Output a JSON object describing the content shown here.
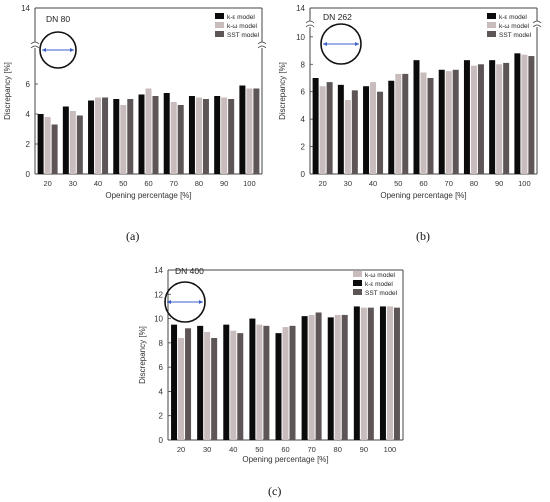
{
  "chart_data": [
    {
      "type": "bar",
      "panel_label": "(a)",
      "pipe_label": "DN 80",
      "xlabel": "Opening percentage [%]",
      "ylabel": "Discrepancy [%]",
      "categories": [
        "20",
        "30",
        "40",
        "50",
        "60",
        "70",
        "80",
        "90",
        "100"
      ],
      "yticks": [
        "0",
        "2",
        "4",
        "6",
        "14"
      ],
      "axis_break": true,
      "series": [
        {
          "name": "k-ε model",
          "color": "#0b0b0b",
          "values": [
            4.0,
            4.5,
            4.9,
            5.0,
            5.3,
            5.4,
            5.2,
            5.2,
            5.9
          ]
        },
        {
          "name": "k-ω model",
          "color": "#c8bcbc",
          "values": [
            3.8,
            4.2,
            5.1,
            4.6,
            5.7,
            4.8,
            5.1,
            5.1,
            5.7
          ]
        },
        {
          "name": "SST model",
          "color": "#5e5656",
          "values": [
            3.3,
            3.9,
            5.1,
            5.0,
            5.2,
            4.6,
            5.0,
            5.0,
            5.7
          ]
        }
      ],
      "legend": "top-right"
    },
    {
      "type": "bar",
      "panel_label": "(b)",
      "pipe_label": "DN 262",
      "xlabel": "Opening percentage [%]",
      "ylabel": "Discrepancy [%]",
      "categories": [
        "20",
        "30",
        "40",
        "50",
        "60",
        "70",
        "80",
        "90",
        "100"
      ],
      "yticks": [
        "0",
        "2",
        "4",
        "6",
        "8",
        "10",
        "14"
      ],
      "axis_break": true,
      "series": [
        {
          "name": "k-ε model",
          "color": "#0b0b0b",
          "values": [
            7.0,
            6.5,
            6.4,
            6.8,
            8.3,
            7.6,
            8.3,
            8.3,
            8.8
          ]
        },
        {
          "name": "k-ω model",
          "color": "#c8bcbc",
          "values": [
            6.4,
            5.4,
            6.7,
            7.3,
            7.4,
            7.5,
            7.9,
            8.0,
            8.7
          ]
        },
        {
          "name": "SST model",
          "color": "#5e5656",
          "values": [
            6.7,
            6.1,
            6.0,
            7.3,
            7.0,
            7.6,
            8.0,
            8.1,
            8.6
          ]
        }
      ],
      "legend": "top-right"
    },
    {
      "type": "bar",
      "panel_label": "(c)",
      "pipe_label": "DN 400",
      "xlabel": "Opening percentage [%]",
      "ylabel": "Discrepancy [%]",
      "categories": [
        "20",
        "30",
        "40",
        "50",
        "60",
        "70",
        "80",
        "90",
        "100"
      ],
      "yticks": [
        "0",
        "2",
        "4",
        "6",
        "8",
        "10",
        "12",
        "14"
      ],
      "axis_break": false,
      "series": [
        {
          "name": "k-ω model",
          "color": "#c8bcbc",
          "values": [
            8.4,
            8.9,
            9.0,
            9.5,
            9.3,
            10.3,
            10.3,
            10.9,
            11.0
          ]
        },
        {
          "name": "k-ε model",
          "color": "#0b0b0b",
          "values": [
            9.5,
            9.4,
            9.5,
            10.0,
            8.8,
            10.2,
            10.1,
            11.0,
            11.0
          ]
        },
        {
          "name": "SST model",
          "color": "#5e5656",
          "values": [
            9.2,
            8.4,
            8.8,
            9.4,
            9.4,
            10.5,
            10.3,
            10.9,
            10.9
          ]
        }
      ],
      "series_order": [
        1,
        0,
        2
      ],
      "legend": "top-right"
    }
  ]
}
